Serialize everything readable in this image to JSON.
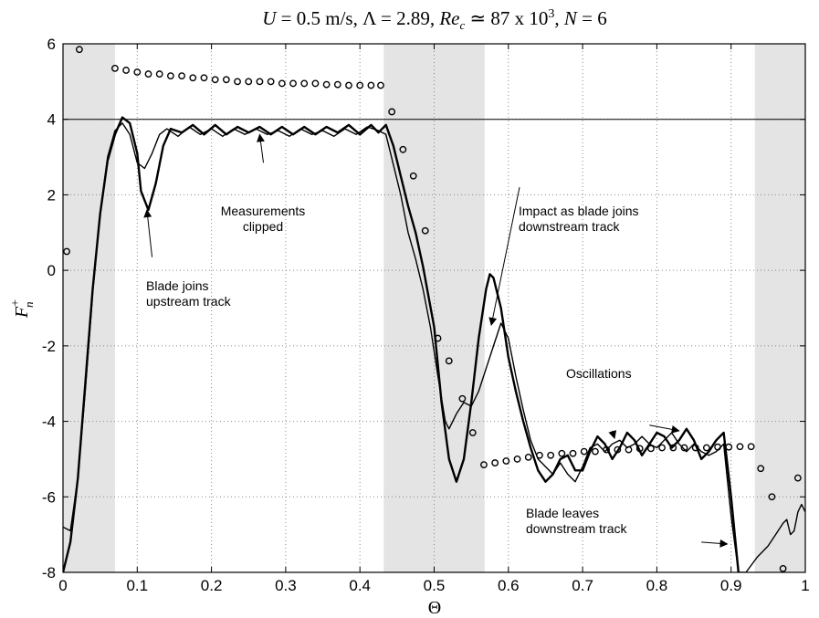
{
  "chart_data": {
    "type": "line",
    "title": {
      "u": "U",
      "u_rest": " = 0.5 m/s, ",
      "lambda": "Λ",
      "lambda_rest": " = 2.89, ",
      "rec": "Re",
      "rec_sub": "c",
      "rec_rest": " ≃ 87 x 10",
      "rec_sup": "3",
      "n_rest": ", ",
      "n": "N",
      "n_val": " = 6"
    },
    "xlabel": "Θ",
    "ylabel": {
      "base": "F",
      "sup": "+",
      "sub": "n"
    },
    "xlim": [
      0,
      1
    ],
    "ylim": [
      -8,
      6
    ],
    "xticks": [
      0,
      0.1,
      0.2,
      0.3,
      0.4,
      0.5,
      0.6,
      0.7,
      0.8,
      0.9,
      1
    ],
    "xtick_labels": [
      "0",
      "0.1",
      "0.2",
      "0.3",
      "0.4",
      "0.5",
      "0.6",
      "0.7",
      "0.8",
      "0.9",
      "1"
    ],
    "yticks": [
      -8,
      -6,
      -4,
      -2,
      0,
      2,
      4,
      6
    ],
    "ytick_labels": [
      "-8",
      "-6",
      "-4",
      "-2",
      "0",
      "2",
      "4",
      "6"
    ],
    "grid": true,
    "grid_style": "dotted",
    "reference_line_y": 4,
    "shaded_regions": [
      [
        0,
        0.07
      ],
      [
        0.432,
        0.568
      ],
      [
        0.932,
        1
      ]
    ],
    "shade_color": "#e4e4e4",
    "series": [
      {
        "style": "line-thick",
        "color": "#000000",
        "points": [
          [
            0,
            -8
          ],
          [
            0.01,
            -7.2
          ],
          [
            0.02,
            -5.5
          ],
          [
            0.03,
            -3
          ],
          [
            0.04,
            -0.5
          ],
          [
            0.05,
            1.5
          ],
          [
            0.06,
            2.9
          ],
          [
            0.07,
            3.6
          ],
          [
            0.08,
            4.05
          ],
          [
            0.09,
            3.9
          ],
          [
            0.1,
            3.1
          ],
          [
            0.105,
            2.1
          ],
          [
            0.115,
            1.6
          ],
          [
            0.125,
            2.3
          ],
          [
            0.135,
            3.3
          ],
          [
            0.145,
            3.75
          ],
          [
            0.16,
            3.65
          ],
          [
            0.175,
            3.85
          ],
          [
            0.19,
            3.6
          ],
          [
            0.205,
            3.85
          ],
          [
            0.22,
            3.6
          ],
          [
            0.235,
            3.8
          ],
          [
            0.25,
            3.65
          ],
          [
            0.265,
            3.8
          ],
          [
            0.28,
            3.6
          ],
          [
            0.295,
            3.8
          ],
          [
            0.31,
            3.6
          ],
          [
            0.325,
            3.8
          ],
          [
            0.34,
            3.6
          ],
          [
            0.355,
            3.8
          ],
          [
            0.37,
            3.65
          ],
          [
            0.385,
            3.85
          ],
          [
            0.4,
            3.6
          ],
          [
            0.415,
            3.85
          ],
          [
            0.425,
            3.65
          ],
          [
            0.435,
            3.85
          ],
          [
            0.445,
            3.3
          ],
          [
            0.455,
            2.5
          ],
          [
            0.465,
            1.7
          ],
          [
            0.475,
            1
          ],
          [
            0.485,
            0.1
          ],
          [
            0.5,
            -1.5
          ],
          [
            0.51,
            -3.5
          ],
          [
            0.52,
            -5
          ],
          [
            0.53,
            -5.6
          ],
          [
            0.54,
            -5
          ],
          [
            0.55,
            -3.5
          ],
          [
            0.56,
            -1.8
          ],
          [
            0.57,
            -0.5
          ],
          [
            0.575,
            -0.1
          ],
          [
            0.58,
            -0.2
          ],
          [
            0.59,
            -1
          ],
          [
            0.6,
            -2.3
          ],
          [
            0.61,
            -3.2
          ],
          [
            0.62,
            -4
          ],
          [
            0.63,
            -4.7
          ],
          [
            0.64,
            -5.3
          ],
          [
            0.65,
            -5.6
          ],
          [
            0.66,
            -5.4
          ],
          [
            0.67,
            -5
          ],
          [
            0.68,
            -4.9
          ],
          [
            0.69,
            -5.3
          ],
          [
            0.7,
            -5.3
          ],
          [
            0.71,
            -4.8
          ],
          [
            0.72,
            -4.4
          ],
          [
            0.73,
            -4.6
          ],
          [
            0.74,
            -5
          ],
          [
            0.75,
            -4.7
          ],
          [
            0.76,
            -4.3
          ],
          [
            0.77,
            -4.5
          ],
          [
            0.78,
            -4.9
          ],
          [
            0.79,
            -4.6
          ],
          [
            0.8,
            -4.3
          ],
          [
            0.81,
            -4.4
          ],
          [
            0.82,
            -4.7
          ],
          [
            0.83,
            -4.5
          ],
          [
            0.84,
            -4.2
          ],
          [
            0.85,
            -4.5
          ],
          [
            0.86,
            -5
          ],
          [
            0.87,
            -4.8
          ],
          [
            0.88,
            -4.5
          ],
          [
            0.89,
            -4.3
          ],
          [
            0.9,
            -6
          ],
          [
            0.91,
            -8
          ]
        ]
      },
      {
        "style": "line-thin",
        "color": "#000000",
        "points": [
          [
            0,
            -6.8
          ],
          [
            0.01,
            -6.9
          ],
          [
            0.02,
            -5.5
          ],
          [
            0.03,
            -3.2
          ],
          [
            0.04,
            -0.6
          ],
          [
            0.05,
            1.5
          ],
          [
            0.06,
            3
          ],
          [
            0.07,
            3.7
          ],
          [
            0.08,
            3.9
          ],
          [
            0.09,
            3.6
          ],
          [
            0.1,
            2.85
          ],
          [
            0.11,
            2.7
          ],
          [
            0.12,
            3.1
          ],
          [
            0.13,
            3.6
          ],
          [
            0.14,
            3.75
          ],
          [
            0.155,
            3.55
          ],
          [
            0.17,
            3.8
          ],
          [
            0.185,
            3.6
          ],
          [
            0.2,
            3.75
          ],
          [
            0.215,
            3.55
          ],
          [
            0.23,
            3.75
          ],
          [
            0.245,
            3.6
          ],
          [
            0.26,
            3.75
          ],
          [
            0.275,
            3.6
          ],
          [
            0.29,
            3.7
          ],
          [
            0.305,
            3.55
          ],
          [
            0.32,
            3.75
          ],
          [
            0.335,
            3.6
          ],
          [
            0.35,
            3.7
          ],
          [
            0.365,
            3.55
          ],
          [
            0.38,
            3.75
          ],
          [
            0.395,
            3.6
          ],
          [
            0.41,
            3.8
          ],
          [
            0.425,
            3.7
          ],
          [
            0.435,
            3.6
          ],
          [
            0.445,
            2.8
          ],
          [
            0.455,
            2
          ],
          [
            0.465,
            1
          ],
          [
            0.475,
            0.3
          ],
          [
            0.485,
            -0.5
          ],
          [
            0.495,
            -1.5
          ],
          [
            0.505,
            -2.8
          ],
          [
            0.515,
            -4
          ],
          [
            0.52,
            -4.2
          ],
          [
            0.53,
            -3.8
          ],
          [
            0.54,
            -3.5
          ],
          [
            0.55,
            -3.6
          ],
          [
            0.56,
            -3.2
          ],
          [
            0.57,
            -2.6
          ],
          [
            0.58,
            -2
          ],
          [
            0.59,
            -1.4
          ],
          [
            0.6,
            -1.8
          ],
          [
            0.61,
            -2.8
          ],
          [
            0.62,
            -3.7
          ],
          [
            0.63,
            -4.5
          ],
          [
            0.64,
            -5
          ],
          [
            0.65,
            -5.2
          ],
          [
            0.66,
            -5.4
          ],
          [
            0.67,
            -5.1
          ],
          [
            0.68,
            -5.4
          ],
          [
            0.69,
            -5.6
          ],
          [
            0.7,
            -5.2
          ],
          [
            0.71,
            -4.7
          ],
          [
            0.72,
            -4.6
          ],
          [
            0.73,
            -4.8
          ],
          [
            0.74,
            -4.6
          ],
          [
            0.75,
            -4.5
          ],
          [
            0.76,
            -4.7
          ],
          [
            0.77,
            -4.6
          ],
          [
            0.78,
            -4.4
          ],
          [
            0.79,
            -4.6
          ],
          [
            0.8,
            -4.7
          ],
          [
            0.81,
            -4.5
          ],
          [
            0.82,
            -4.3
          ],
          [
            0.83,
            -4.6
          ],
          [
            0.84,
            -4.8
          ],
          [
            0.85,
            -4.6
          ],
          [
            0.86,
            -4.8
          ],
          [
            0.87,
            -4.9
          ],
          [
            0.88,
            -4.8
          ],
          [
            0.89,
            -4.6
          ],
          [
            0.9,
            -6.5
          ],
          [
            0.91,
            -8
          ],
          [
            0.92,
            -8
          ],
          [
            0.935,
            -7.6
          ],
          [
            0.95,
            -7.3
          ],
          [
            0.96,
            -7
          ],
          [
            0.97,
            -6.7
          ],
          [
            0.975,
            -6.6
          ],
          [
            0.98,
            -7
          ],
          [
            0.985,
            -6.9
          ],
          [
            0.99,
            -6.4
          ],
          [
            0.995,
            -6.2
          ],
          [
            1,
            -6.4
          ]
        ]
      },
      {
        "style": "markers",
        "color": "#000000",
        "points": [
          [
            0.005,
            0.5
          ],
          [
            0.022,
            5.85
          ],
          [
            0.07,
            5.35
          ],
          [
            0.085,
            5.3
          ],
          [
            0.1,
            5.25
          ],
          [
            0.115,
            5.2
          ],
          [
            0.13,
            5.2
          ],
          [
            0.145,
            5.15
          ],
          [
            0.16,
            5.15
          ],
          [
            0.175,
            5.1
          ],
          [
            0.19,
            5.1
          ],
          [
            0.205,
            5.05
          ],
          [
            0.22,
            5.05
          ],
          [
            0.235,
            5
          ],
          [
            0.25,
            5
          ],
          [
            0.265,
            5
          ],
          [
            0.28,
            5
          ],
          [
            0.295,
            4.95
          ],
          [
            0.31,
            4.95
          ],
          [
            0.325,
            4.95
          ],
          [
            0.34,
            4.95
          ],
          [
            0.355,
            4.92
          ],
          [
            0.37,
            4.92
          ],
          [
            0.385,
            4.9
          ],
          [
            0.4,
            4.9
          ],
          [
            0.415,
            4.9
          ],
          [
            0.428,
            4.9
          ],
          [
            0.443,
            4.2
          ],
          [
            0.458,
            3.2
          ],
          [
            0.472,
            2.5
          ],
          [
            0.488,
            1.05
          ],
          [
            0.505,
            -1.8
          ],
          [
            0.52,
            -2.4
          ],
          [
            0.538,
            -3.4
          ],
          [
            0.552,
            -4.3
          ],
          [
            0.567,
            -5.15
          ],
          [
            0.582,
            -5.1
          ],
          [
            0.597,
            -5.05
          ],
          [
            0.612,
            -5
          ],
          [
            0.627,
            -4.95
          ],
          [
            0.642,
            -4.9
          ],
          [
            0.657,
            -4.9
          ],
          [
            0.672,
            -4.85
          ],
          [
            0.687,
            -4.85
          ],
          [
            0.702,
            -4.8
          ],
          [
            0.717,
            -4.8
          ],
          [
            0.732,
            -4.75
          ],
          [
            0.747,
            -4.75
          ],
          [
            0.762,
            -4.75
          ],
          [
            0.777,
            -4.72
          ],
          [
            0.792,
            -4.72
          ],
          [
            0.807,
            -4.7
          ],
          [
            0.822,
            -4.7
          ],
          [
            0.837,
            -4.7
          ],
          [
            0.852,
            -4.7
          ],
          [
            0.867,
            -4.7
          ],
          [
            0.882,
            -4.68
          ],
          [
            0.897,
            -4.68
          ],
          [
            0.912,
            -4.67
          ],
          [
            0.927,
            -4.67
          ],
          [
            0.94,
            -5.25
          ],
          [
            0.955,
            -6
          ],
          [
            0.97,
            -7.9
          ],
          [
            0.99,
            -5.5
          ]
        ]
      }
    ],
    "annotations": [
      {
        "lines": [
          "Measurements",
          "clipped"
        ],
        "align": "middle",
        "arrow_from": [
          0.27,
          2.85
        ],
        "arrow_to": [
          0.265,
          3.6
        ]
      },
      {
        "lines": [
          "Blade joins",
          "upstream track"
        ],
        "align": "start",
        "arrow_from": [
          0.12,
          0.35
        ],
        "arrow_to": [
          0.113,
          1.6
        ]
      },
      {
        "lines": [
          "Impact as blade joins",
          "downstream track"
        ],
        "align": "start",
        "arrow_from": [
          0.615,
          2.2
        ],
        "arrow_to": [
          0.577,
          -1.45
        ]
      },
      {
        "lines": [
          "Oscillations"
        ],
        "align": "start",
        "arrow_from": [
          0.74,
          -4.25
        ],
        "arrow_to": [
          0.743,
          -4.45
        ]
      },
      {
        "lines": [
          "Blade leaves",
          "downstream track"
        ],
        "align": "start",
        "arrow_from": [
          0.86,
          -7.2
        ],
        "arrow_to": [
          0.895,
          -7.25
        ]
      }
    ],
    "extra_arrows": [
      {
        "from": [
          0.79,
          -4.1
        ],
        "to": [
          0.83,
          -4.25
        ]
      }
    ]
  }
}
